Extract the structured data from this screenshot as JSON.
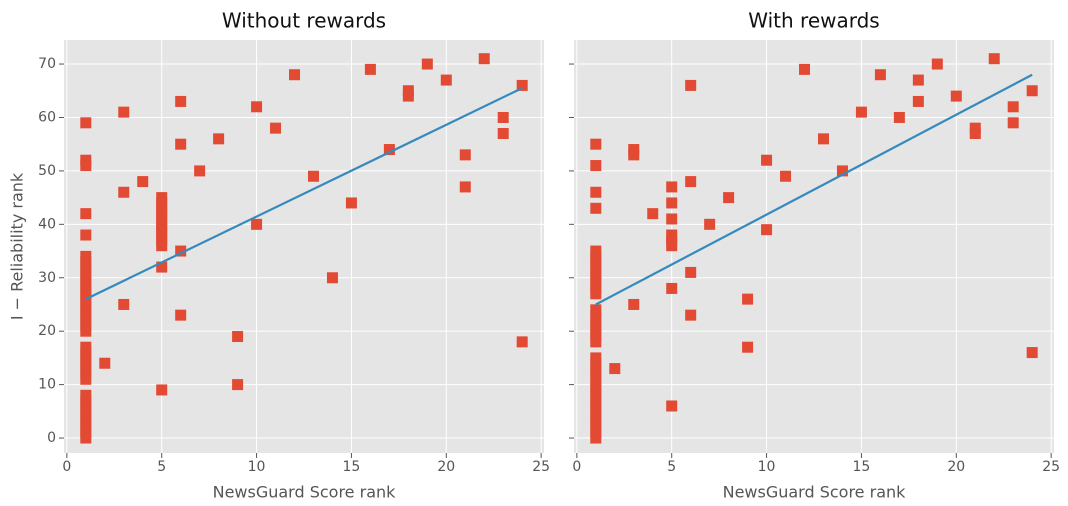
{
  "chart_data": [
    {
      "type": "scatter",
      "title": "Without rewards",
      "x_label": "NewsGuard Score rank",
      "y_label": "I − Reliability rank",
      "xlim": [
        -0.15,
        25.15
      ],
      "ylim": [
        -2.8,
        74.5
      ],
      "xticks": [
        0,
        5,
        10,
        15,
        20,
        25
      ],
      "yticks": [
        0,
        10,
        20,
        30,
        40,
        50,
        60,
        70
      ],
      "grid": true,
      "background": "#E5E5E5",
      "marker_color": "#E24A33",
      "fit_color": "#348ABD",
      "x": [
        1,
        1,
        1,
        1,
        1,
        1,
        1,
        1,
        1,
        1,
        1,
        1,
        1,
        1,
        1,
        1,
        1,
        1,
        1,
        1,
        1,
        1,
        1,
        1,
        1,
        1,
        1,
        1,
        1,
        1,
        1,
        1,
        1,
        1,
        1,
        1,
        2,
        3,
        3,
        3,
        4,
        5,
        5,
        5,
        5,
        5,
        5,
        5,
        5,
        5,
        5,
        5,
        5,
        6,
        6,
        6,
        6,
        7,
        8,
        9,
        9,
        10,
        10,
        11,
        12,
        13,
        14,
        15,
        16,
        17,
        18,
        18,
        19,
        20,
        21,
        21,
        22,
        23,
        23,
        24,
        24
      ],
      "y": [
        59,
        52,
        51,
        42,
        38,
        34,
        33,
        32,
        31,
        30,
        29,
        28,
        27,
        26,
        25,
        24,
        23,
        22,
        21,
        20,
        17,
        16,
        15,
        14,
        13,
        12,
        11,
        8,
        7,
        6,
        5,
        4,
        3,
        2,
        1,
        0,
        14,
        61,
        46,
        25,
        48,
        45,
        44,
        43,
        42,
        41,
        40,
        39,
        38,
        37,
        36,
        32,
        9,
        63,
        55,
        35,
        23,
        50,
        56,
        19,
        10,
        62,
        40,
        58,
        68,
        49,
        30,
        44,
        69,
        54,
        65,
        64,
        70,
        67,
        53,
        47,
        71,
        60,
        57,
        66,
        18
      ],
      "fit": {
        "x": [
          1,
          24
        ],
        "y": [
          26,
          65.5
        ]
      }
    },
    {
      "type": "scatter",
      "title": "With rewards",
      "x_label": "NewsGuard Score rank",
      "sharey": true,
      "xlim": [
        -0.15,
        25.15
      ],
      "ylim": [
        -2.8,
        74.5
      ],
      "xticks": [
        0,
        5,
        10,
        15,
        20,
        25
      ],
      "grid": true,
      "background": "#E5E5E5",
      "marker_color": "#E24A33",
      "fit_color": "#348ABD",
      "x": [
        1,
        1,
        1,
        1,
        1,
        1,
        1,
        1,
        1,
        1,
        1,
        1,
        1,
        1,
        1,
        1,
        1,
        1,
        1,
        1,
        1,
        1,
        1,
        1,
        1,
        1,
        1,
        1,
        1,
        1,
        1,
        1,
        1,
        1,
        1,
        1,
        2,
        3,
        3,
        3,
        4,
        5,
        5,
        5,
        5,
        5,
        5,
        5,
        5,
        6,
        6,
        6,
        6,
        7,
        8,
        9,
        9,
        10,
        10,
        11,
        12,
        13,
        14,
        15,
        16,
        17,
        18,
        18,
        19,
        20,
        21,
        21,
        22,
        23,
        23,
        24,
        24
      ],
      "y": [
        55,
        51,
        46,
        43,
        35,
        34,
        33,
        32,
        31,
        30,
        29,
        28,
        27,
        24,
        23,
        22,
        21,
        20,
        19,
        18,
        15,
        14,
        13,
        12,
        11,
        10,
        9,
        8,
        7,
        6,
        5,
        4,
        3,
        2,
        1,
        0,
        13,
        54,
        53,
        25,
        42,
        47,
        44,
        41,
        38,
        37,
        36,
        28,
        6,
        66,
        48,
        31,
        23,
        40,
        45,
        26,
        17,
        52,
        39,
        49,
        69,
        56,
        50,
        61,
        68,
        60,
        67,
        63,
        70,
        64,
        58,
        57,
        71,
        62,
        59,
        65,
        16
      ],
      "fit": {
        "x": [
          1,
          24
        ],
        "y": [
          25,
          68
        ]
      }
    }
  ]
}
